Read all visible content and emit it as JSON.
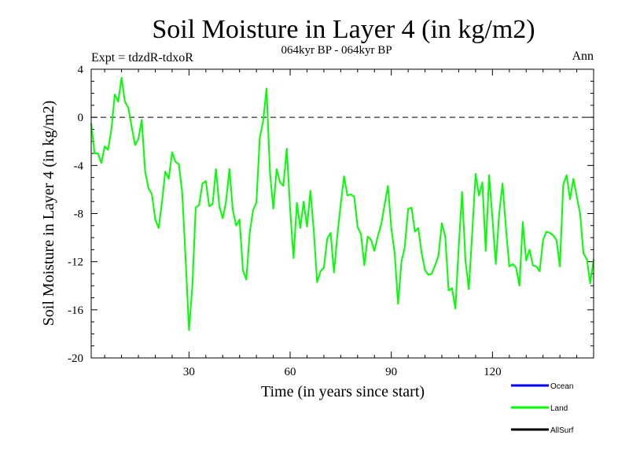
{
  "chart_data": {
    "type": "line",
    "title": "Soil Moisture in Layer 4 (in kg/m2)",
    "subtitle": "064kyr BP - 064kyr BP",
    "experiment_label": "Expt = tdzdR-tdxoR",
    "period_label": "Ann",
    "xlabel": "Time (in years since start)",
    "ylabel": "Soil Moisture in Layer 4 (in kg/m2)",
    "xlim": [
      1,
      150
    ],
    "ylim": [
      -20,
      4
    ],
    "x_ticks": [
      30,
      60,
      90,
      120
    ],
    "y_ticks": [
      4,
      0,
      -4,
      -8,
      -12,
      -16,
      -20
    ],
    "zero_line": true,
    "legend": {
      "placement": "bottom-right",
      "entries": [
        {
          "name": "Ocean",
          "color": "#0000ff"
        },
        {
          "name": "Land",
          "color": "#00ff00"
        },
        {
          "name": "AllSurf",
          "color": "#000000"
        }
      ]
    },
    "series": [
      {
        "name": "Land",
        "color": "#00ff00",
        "x_start": 1,
        "values": [
          -0.5,
          -3.0,
          -3.0,
          -3.8,
          -2.4,
          -2.7,
          -1.0,
          1.9,
          1.3,
          3.3,
          1.3,
          0.8,
          -0.8,
          -2.3,
          -1.8,
          -0.2,
          -4.5,
          -5.9,
          -6.4,
          -8.5,
          -9.2,
          -7.0,
          -4.5,
          -5.1,
          -2.9,
          -3.7,
          -3.9,
          -6.3,
          -11.8,
          -17.7,
          -14.0,
          -7.5,
          -7.3,
          -5.5,
          -5.3,
          -7.4,
          -7.2,
          -4.3,
          -7.4,
          -8.4,
          -7.0,
          -4.3,
          -7.7,
          -9.0,
          -8.5,
          -12.7,
          -13.5,
          -9.6,
          -7.7,
          -7.1,
          -1.7,
          -0.3,
          2.4,
          -4.5,
          -7.6,
          -4.3,
          -5.4,
          -5.7,
          -2.6,
          -7.6,
          -11.7,
          -7.1,
          -9.2,
          -7.0,
          -9.1,
          -6.1,
          -9.3,
          -13.7,
          -12.8,
          -12.5,
          -10.1,
          -9.6,
          -12.9,
          -9.8,
          -7.2,
          -4.9,
          -6.5,
          -6.4,
          -6.6,
          -9.1,
          -9.7,
          -12.3,
          -9.9,
          -10.2,
          -11.1,
          -9.9,
          -8.9,
          -7.3,
          -5.7,
          -9.2,
          -11.3,
          -15.5,
          -12.0,
          -10.8,
          -7.6,
          -7.5,
          -9.5,
          -9.2,
          -11.3,
          -12.7,
          -13.1,
          -13.0,
          -12.3,
          -11.5,
          -8.8,
          -9.9,
          -14.4,
          -14.2,
          -15.9,
          -10.7,
          -6.2,
          -11.9,
          -14.3,
          -9.6,
          -4.7,
          -6.5,
          -5.4,
          -11.1,
          -4.8,
          -8.4,
          -12.2,
          -8.0,
          -5.5,
          -9.2,
          -12.4,
          -12.2,
          -12.5,
          -14.0,
          -8.7,
          -11.9,
          -11.0,
          -12.3,
          -12.4,
          -12.8,
          -10.2,
          -9.5,
          -9.6,
          -9.8,
          -10.2,
          -12.4,
          -5.6,
          -4.8,
          -6.8,
          -5.1,
          -6.6,
          -8.0,
          -11.3,
          -11.8,
          -13.8,
          -11.8
        ]
      }
    ]
  }
}
